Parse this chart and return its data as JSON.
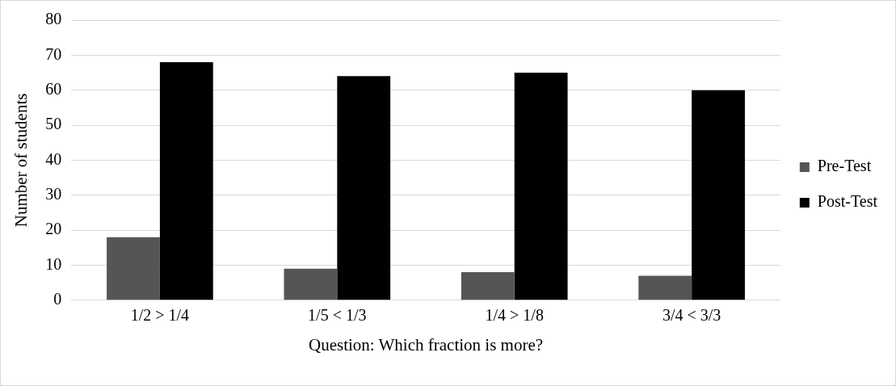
{
  "chart_data": {
    "type": "bar",
    "xlabel": "Question: Which fraction is more?",
    "ylabel": "Number of students",
    "categories": [
      "1/2 > 1/4",
      "1/5 < 1/3",
      "1/4 > 1/8",
      "3/4 < 3/3"
    ],
    "series": [
      {
        "name": "Pre-Test",
        "color": "#555555",
        "values": [
          18,
          9,
          8,
          7
        ]
      },
      {
        "name": "Post-Test",
        "color": "#000000",
        "values": [
          68,
          64,
          65,
          60
        ]
      }
    ],
    "ylim": [
      0,
      80
    ],
    "yticks": [
      0,
      10,
      20,
      30,
      40,
      50,
      60,
      70,
      80
    ],
    "grid": "y",
    "legend": "right"
  }
}
